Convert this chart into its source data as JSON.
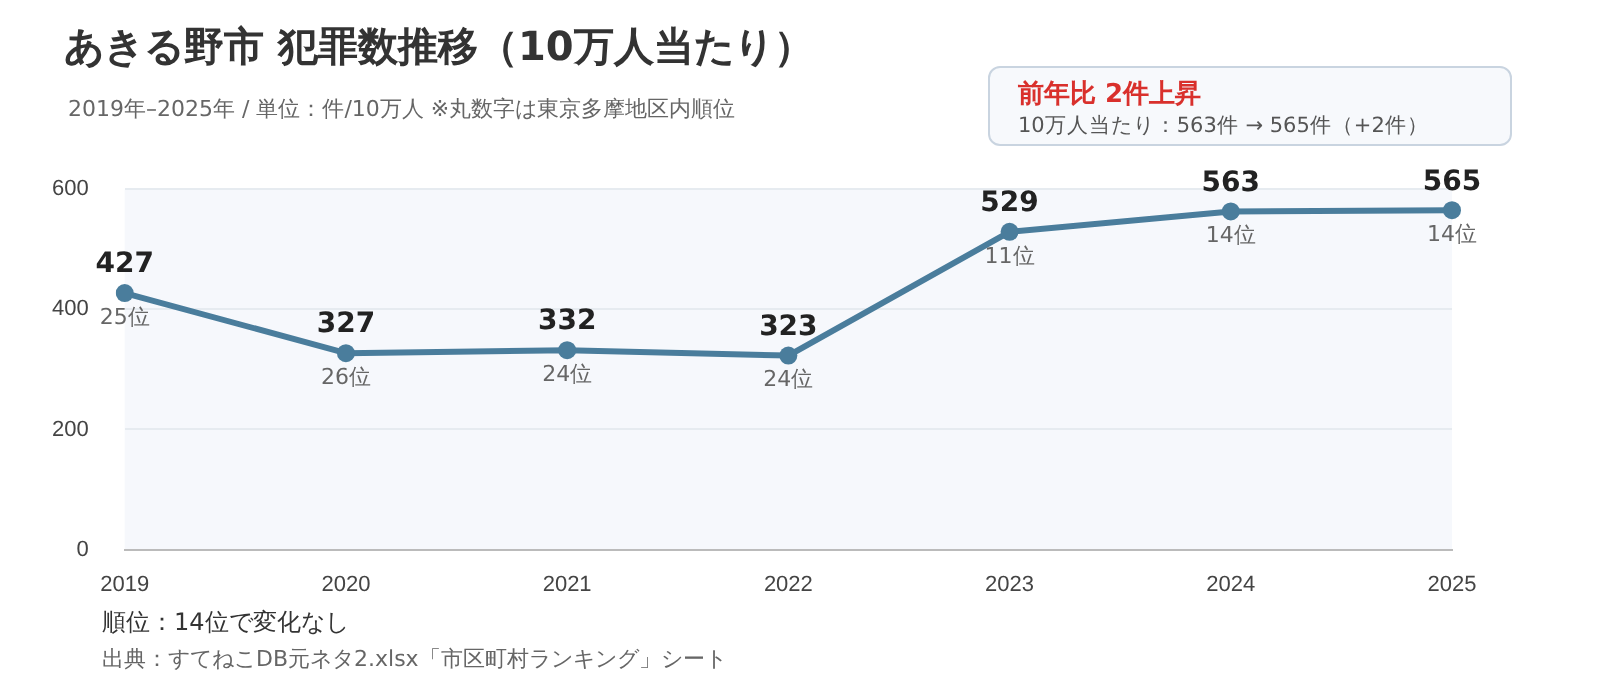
{
  "chart_data": {
    "type": "line",
    "title": "あきる野市 犯罪数推移（10万人当たり）",
    "subtitle": "2019年–2025年 / 単位：件/10万人 ※丸数字は東京多摩地区内順位",
    "categories": [
      "2019",
      "2020",
      "2021",
      "2022",
      "2023",
      "2024",
      "2025"
    ],
    "series": [
      {
        "color": "#4a7d9c",
        "values": [
          427,
          327,
          332,
          323,
          529,
          563,
          565
        ]
      }
    ],
    "ylim": [
      0,
      600
    ],
    "yticks": [
      0,
      200,
      400,
      600
    ],
    "grid": "y",
    "legend": false,
    "marker": "circle",
    "line_style": "solid",
    "data_labels": true,
    "annotations": [
      "前年比 2件上昇",
      "10万人当たり：563件 → 565件（+2件）",
      "順位：14位で変化なし",
      "出典：すてねこDB元ネタ2.xlsx「市区町村ランキング」シート",
      {
        "text": "25位",
        "x": "2019",
        "y": 427
      },
      {
        "text": "26位",
        "x": "2020",
        "y": 327
      },
      {
        "text": "24位",
        "x": "2021",
        "y": 332
      },
      {
        "text": "24位",
        "x": "2022",
        "y": 323
      },
      {
        "text": "11位",
        "x": "2023",
        "y": 529
      },
      {
        "text": "14位",
        "x": "2024",
        "y": 563
      },
      {
        "text": "14位",
        "x": "2025",
        "y": 565
      }
    ]
  }
}
